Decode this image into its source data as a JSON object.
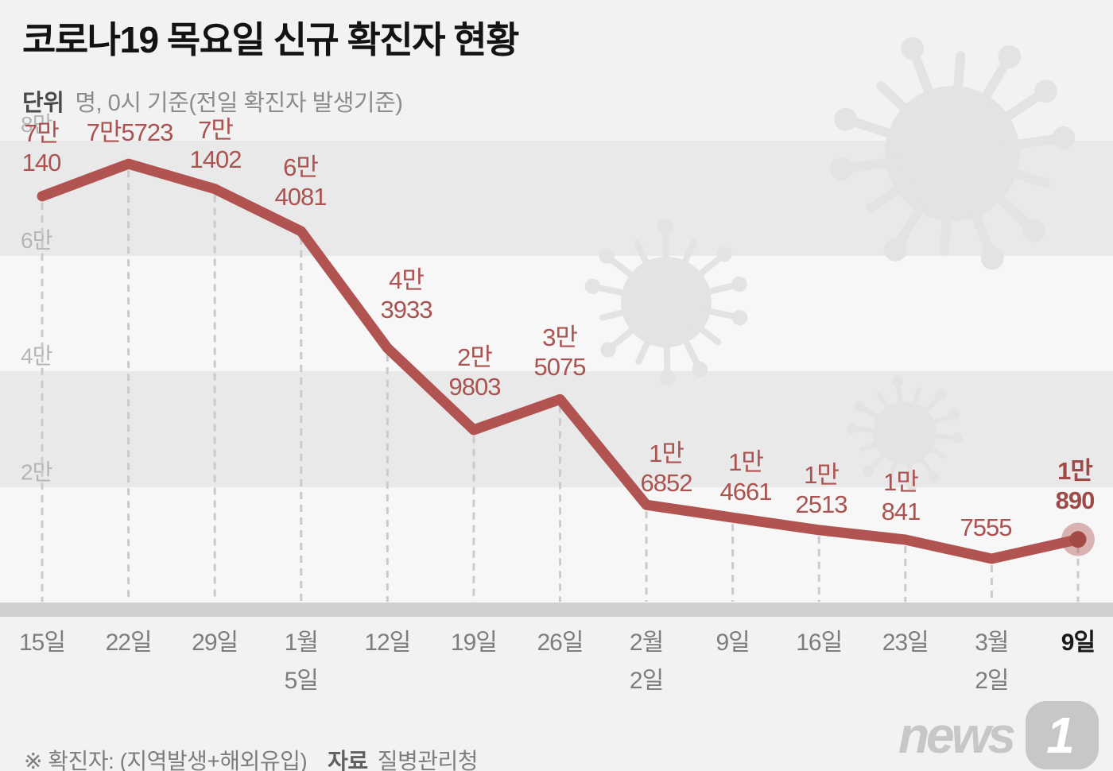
{
  "header": {
    "title": "코로나19 목요일 신규 확진자 현황",
    "subtitle_label": "단위",
    "subtitle": "명, 0시 기준(전일 확진자 발생기준)"
  },
  "chart_data": {
    "type": "line",
    "title": "코로나19 목요일 신규 확진자 현황",
    "unit": "명",
    "ylim": [
      0,
      80000
    ],
    "grid": "horizontal-bands",
    "y_ticks": [
      "8만",
      "6만",
      "4만",
      "2만"
    ],
    "y_tick_values": [
      80000,
      60000,
      40000,
      20000
    ],
    "x_labels": [
      [
        "15일"
      ],
      [
        "22일"
      ],
      [
        "29일"
      ],
      [
        "1월",
        "5일"
      ],
      [
        "12일"
      ],
      [
        "19일"
      ],
      [
        "26일"
      ],
      [
        "2월",
        "2일"
      ],
      [
        "9일"
      ],
      [
        "16일"
      ],
      [
        "23일"
      ],
      [
        "3월",
        "2일"
      ],
      [
        "9일"
      ]
    ],
    "values": [
      70140,
      75723,
      71402,
      64081,
      43933,
      29803,
      35075,
      16852,
      14661,
      12513,
      10841,
      7555,
      10890
    ],
    "point_labels": [
      [
        "7만",
        "140"
      ],
      [
        "7만5723"
      ],
      [
        "7만",
        "1402"
      ],
      [
        "6만",
        "4081"
      ],
      [
        "4만",
        "3933"
      ],
      [
        "2만",
        "9803"
      ],
      [
        "3만",
        "5075"
      ],
      [
        "1만",
        "6852"
      ],
      [
        "1만",
        "4661"
      ],
      [
        "1만",
        "2513"
      ],
      [
        "1만",
        "841"
      ],
      [
        "7555"
      ],
      [
        "1만",
        "890"
      ]
    ],
    "highlight_index": 12,
    "line_color": "#b15351",
    "label_color": "#aa5350",
    "highlight_label_color": "#a04a47",
    "marker_inner_color": "#a34a47",
    "axis_label_color": "#7d7d7d",
    "highlight_axis_label_color": "#1a1a1a",
    "y_tick_color": "#b5b5b5"
  },
  "footer": {
    "note": "※ 확진자: (지역발생+해외유입)",
    "source_label": "자료",
    "source": "질병관리청",
    "logo_text": "news",
    "logo_badge": "1"
  }
}
